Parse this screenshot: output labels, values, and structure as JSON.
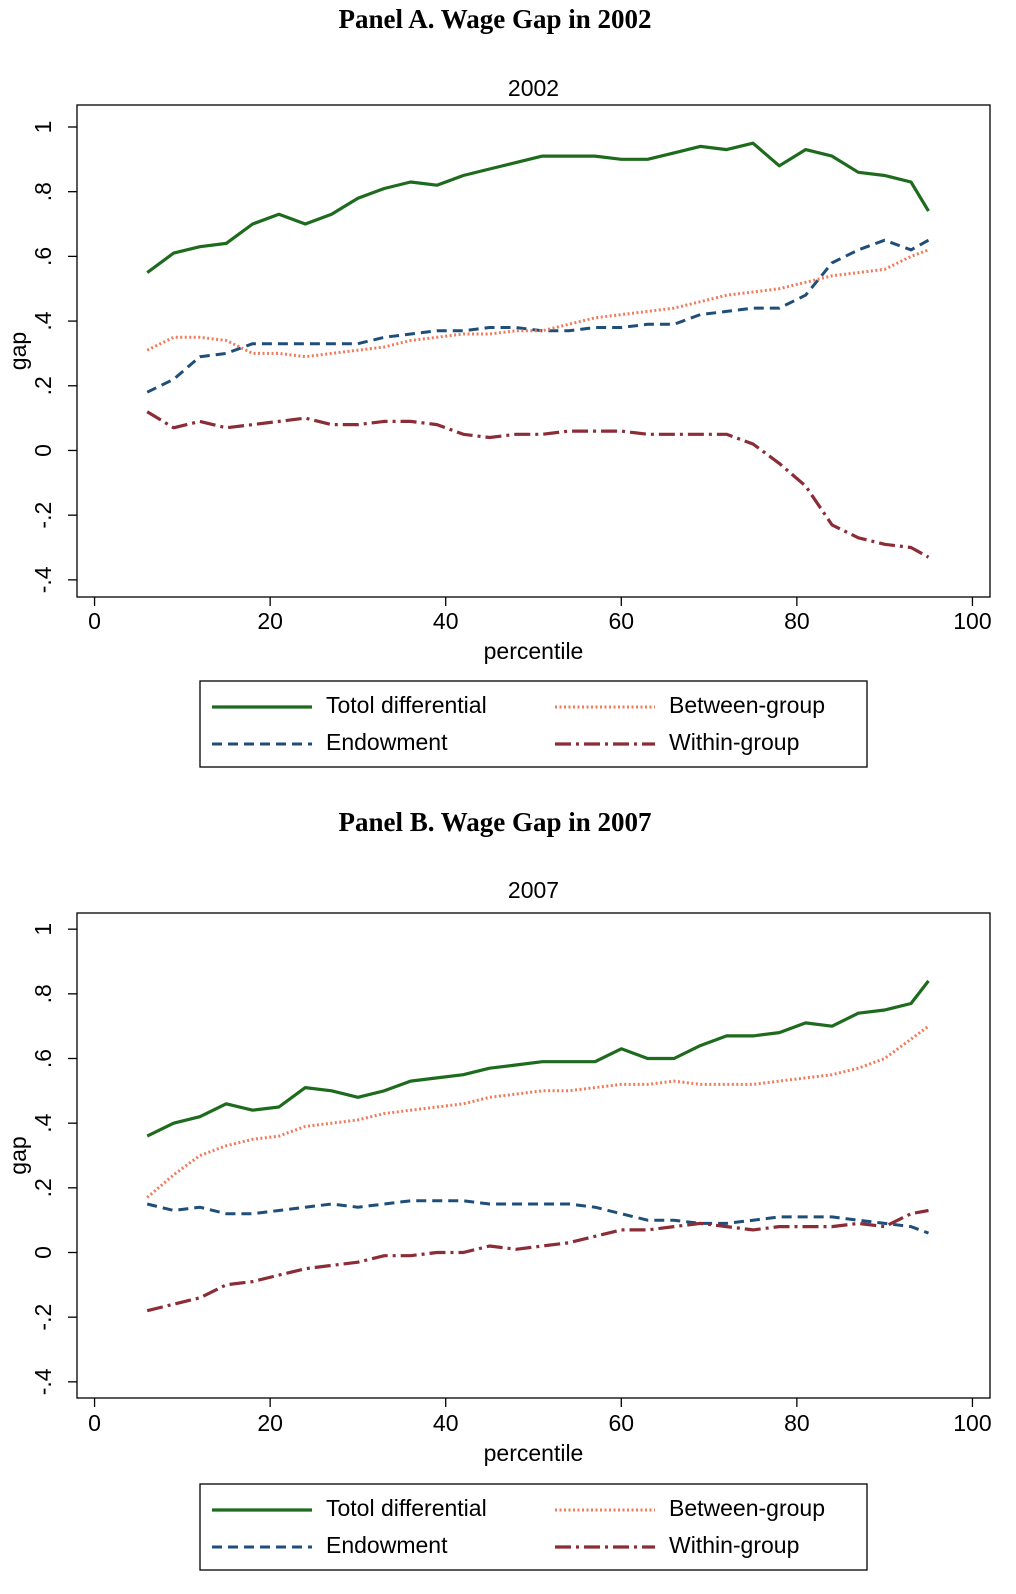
{
  "chart_data": [
    {
      "type": "line",
      "title": "Panel A. Wage Gap in 2002",
      "subtitle": "2002",
      "x_label": "percentile",
      "y_label": "gap",
      "xlim": [
        -2,
        102
      ],
      "ylim": [
        -0.453,
        1.068
      ],
      "xticks": [
        0,
        20,
        40,
        60,
        80,
        100
      ],
      "yticks": [
        {
          "value": -0.4,
          "label": "-.4"
        },
        {
          "value": -0.2,
          "label": "-.2"
        },
        0,
        {
          "value": 0.2,
          "label": ".2"
        },
        {
          "value": 0.4,
          "label": ".4"
        },
        {
          "value": 0.6,
          "label": ".6"
        },
        {
          "value": 0.8,
          "label": ".8"
        },
        1
      ],
      "legend": "bottom",
      "x": [
        6,
        9,
        12,
        15,
        18,
        21,
        24,
        27,
        30,
        33,
        36,
        39,
        42,
        45,
        48,
        51,
        54,
        57,
        60,
        63,
        66,
        69,
        72,
        75,
        78,
        81,
        84,
        87,
        90,
        93,
        95
      ],
      "series": [
        {
          "name": "Totol differential",
          "color": "#1e6b1e",
          "style": "solid",
          "values": [
            0.55,
            0.61,
            0.63,
            0.64,
            0.7,
            0.73,
            0.7,
            0.73,
            0.78,
            0.81,
            0.83,
            0.82,
            0.85,
            0.87,
            0.89,
            0.91,
            0.91,
            0.91,
            0.9,
            0.9,
            0.92,
            0.94,
            0.93,
            0.95,
            0.88,
            0.93,
            0.91,
            0.86,
            0.85,
            0.83,
            0.74
          ]
        },
        {
          "name": "Endowment",
          "color": "#1f4e79",
          "style": "dash",
          "values": [
            0.18,
            0.22,
            0.29,
            0.3,
            0.33,
            0.33,
            0.33,
            0.33,
            0.33,
            0.35,
            0.36,
            0.37,
            0.37,
            0.38,
            0.38,
            0.37,
            0.37,
            0.38,
            0.38,
            0.39,
            0.39,
            0.42,
            0.43,
            0.44,
            0.44,
            0.48,
            0.58,
            0.62,
            0.65,
            0.62,
            0.65
          ]
        },
        {
          "name": "Between-group",
          "color": "#f07a5a",
          "style": "dot",
          "values": [
            0.31,
            0.35,
            0.35,
            0.34,
            0.3,
            0.3,
            0.29,
            0.3,
            0.31,
            0.32,
            0.34,
            0.35,
            0.36,
            0.36,
            0.37,
            0.37,
            0.39,
            0.41,
            0.42,
            0.43,
            0.44,
            0.46,
            0.48,
            0.49,
            0.5,
            0.52,
            0.54,
            0.55,
            0.56,
            0.6,
            0.62
          ]
        },
        {
          "name": "Within-group",
          "color": "#8b2c36",
          "style": "dashdot",
          "values": [
            0.12,
            0.07,
            0.09,
            0.07,
            0.08,
            0.09,
            0.1,
            0.08,
            0.08,
            0.09,
            0.09,
            0.08,
            0.05,
            0.04,
            0.05,
            0.05,
            0.06,
            0.06,
            0.06,
            0.05,
            0.05,
            0.05,
            0.05,
            0.02,
            -0.04,
            -0.11,
            -0.23,
            -0.27,
            -0.29,
            -0.3,
            -0.33
          ]
        }
      ]
    },
    {
      "type": "line",
      "title": "Panel B. Wage Gap in 2007",
      "subtitle": "2007",
      "x_label": "percentile",
      "y_label": "gap",
      "xlim": [
        -2,
        102
      ],
      "ylim": [
        -0.45,
        1.05
      ],
      "xticks": [
        0,
        20,
        40,
        60,
        80,
        100
      ],
      "yticks": [
        {
          "value": -0.4,
          "label": "-.4"
        },
        {
          "value": -0.2,
          "label": "-.2"
        },
        0,
        {
          "value": 0.2,
          "label": ".2"
        },
        {
          "value": 0.4,
          "label": ".4"
        },
        {
          "value": 0.6,
          "label": ".6"
        },
        {
          "value": 0.8,
          "label": ".8"
        },
        1
      ],
      "legend": "bottom",
      "x": [
        6,
        9,
        12,
        15,
        18,
        21,
        24,
        27,
        30,
        33,
        36,
        39,
        42,
        45,
        48,
        51,
        54,
        57,
        60,
        63,
        66,
        69,
        72,
        75,
        78,
        81,
        84,
        87,
        90,
        93,
        95
      ],
      "series": [
        {
          "name": "Totol differential",
          "color": "#1e6b1e",
          "style": "solid",
          "values": [
            0.36,
            0.4,
            0.42,
            0.46,
            0.44,
            0.45,
            0.51,
            0.5,
            0.48,
            0.5,
            0.53,
            0.54,
            0.55,
            0.57,
            0.58,
            0.59,
            0.59,
            0.59,
            0.63,
            0.6,
            0.6,
            0.64,
            0.67,
            0.67,
            0.68,
            0.71,
            0.7,
            0.74,
            0.75,
            0.77,
            0.84
          ]
        },
        {
          "name": "Endowment",
          "color": "#1f4e79",
          "style": "dash",
          "values": [
            0.15,
            0.13,
            0.14,
            0.12,
            0.12,
            0.13,
            0.14,
            0.15,
            0.14,
            0.15,
            0.16,
            0.16,
            0.16,
            0.15,
            0.15,
            0.15,
            0.15,
            0.14,
            0.12,
            0.1,
            0.1,
            0.09,
            0.09,
            0.1,
            0.11,
            0.11,
            0.11,
            0.1,
            0.09,
            0.08,
            0.06
          ]
        },
        {
          "name": "Between-group",
          "color": "#f07a5a",
          "style": "dot",
          "values": [
            0.17,
            0.24,
            0.3,
            0.33,
            0.35,
            0.36,
            0.39,
            0.4,
            0.41,
            0.43,
            0.44,
            0.45,
            0.46,
            0.48,
            0.49,
            0.5,
            0.5,
            0.51,
            0.52,
            0.52,
            0.53,
            0.52,
            0.52,
            0.52,
            0.53,
            0.54,
            0.55,
            0.57,
            0.6,
            0.66,
            0.7
          ]
        },
        {
          "name": "Within-group",
          "color": "#8b2c36",
          "style": "dashdot",
          "values": [
            -0.18,
            -0.16,
            -0.14,
            -0.1,
            -0.09,
            -0.07,
            -0.05,
            -0.04,
            -0.03,
            -0.01,
            -0.01,
            0,
            0,
            0.02,
            0.01,
            0.02,
            0.03,
            0.05,
            0.07,
            0.07,
            0.08,
            0.09,
            0.08,
            0.07,
            0.08,
            0.08,
            0.08,
            0.09,
            0.08,
            0.12,
            0.13
          ]
        }
      ]
    }
  ]
}
